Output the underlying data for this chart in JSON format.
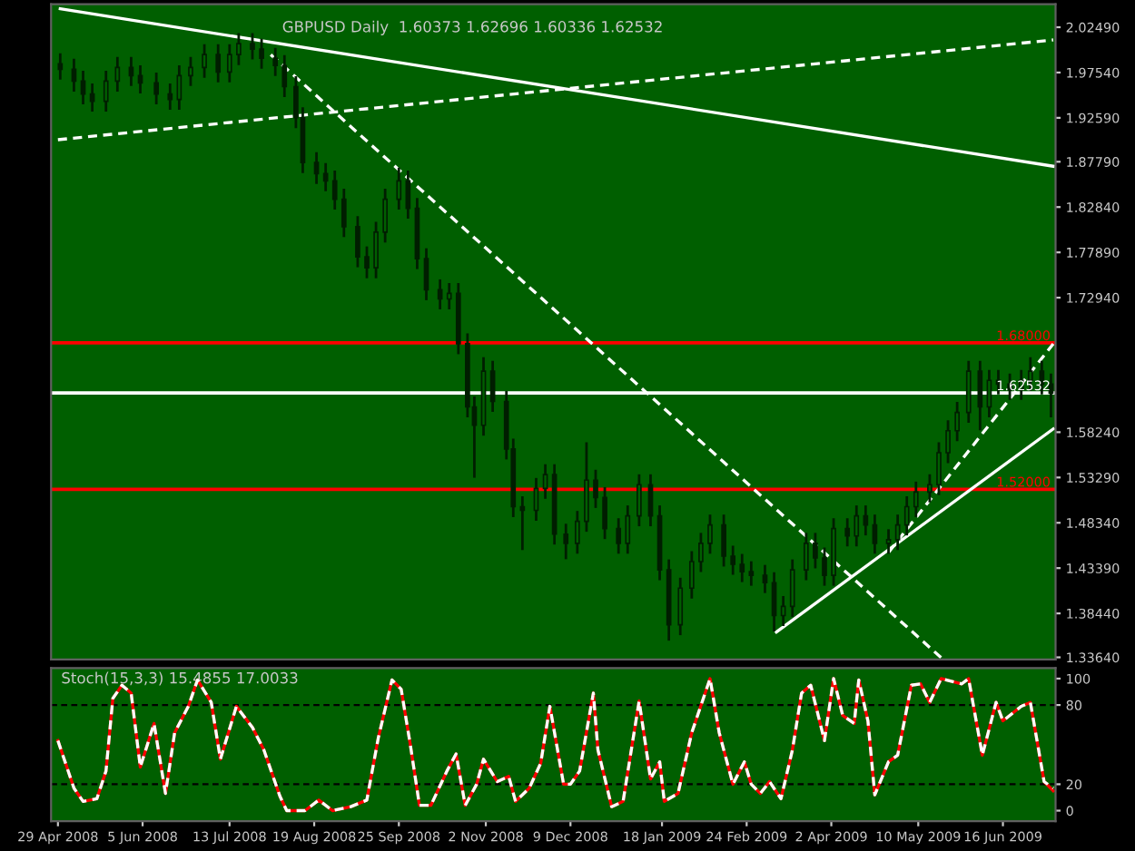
{
  "chart_data": [
    {
      "type": "candlestick",
      "title": "GBPUSD Daily  1.60373 1.62696 1.60336 1.62532",
      "color": "#001e00",
      "x": [
        "2008-04-30",
        "2008-05-06",
        "2008-05-10",
        "2008-05-14",
        "2008-05-20",
        "2008-05-25",
        "2008-05-31",
        "2008-06-04",
        "2008-06-11",
        "2008-06-17",
        "2008-06-21",
        "2008-06-26",
        "2008-07-02",
        "2008-07-08",
        "2008-07-13",
        "2008-07-17",
        "2008-07-23",
        "2008-07-27",
        "2008-08-02",
        "2008-08-06",
        "2008-08-11",
        "2008-08-14",
        "2008-08-20",
        "2008-08-24",
        "2008-08-28",
        "2008-09-01",
        "2008-09-07",
        "2008-09-11",
        "2008-09-15",
        "2008-09-19",
        "2008-09-25",
        "2008-09-29",
        "2008-10-03",
        "2008-10-07",
        "2008-10-13",
        "2008-10-17",
        "2008-10-21",
        "2008-10-25",
        "2008-10-28",
        "2008-11-01",
        "2008-11-05",
        "2008-11-11",
        "2008-11-14",
        "2008-11-18",
        "2008-11-24",
        "2008-11-28",
        "2008-12-02",
        "2008-12-07",
        "2008-12-12",
        "2008-12-16",
        "2008-12-20",
        "2008-12-24",
        "2008-12-30",
        "2009-01-03",
        "2009-01-08",
        "2009-01-13",
        "2009-01-17",
        "2009-01-21",
        "2009-01-26",
        "2009-01-31",
        "2009-02-04",
        "2009-02-08",
        "2009-02-14",
        "2009-02-18",
        "2009-02-22",
        "2009-02-26",
        "2009-03-04",
        "2009-03-08",
        "2009-03-12",
        "2009-03-16",
        "2009-03-22",
        "2009-03-26",
        "2009-03-30",
        "2009-04-03",
        "2009-04-09",
        "2009-04-13",
        "2009-04-17",
        "2009-04-21",
        "2009-04-27",
        "2009-05-01",
        "2009-05-05",
        "2009-05-09",
        "2009-05-15",
        "2009-05-19",
        "2009-05-23",
        "2009-05-27",
        "2009-06-01",
        "2009-06-06",
        "2009-06-10",
        "2009-06-14",
        "2009-06-19",
        "2009-06-24",
        "2009-06-28",
        "2009-07-03",
        "2009-07-07"
      ],
      "ohlc": [
        [
          1.985,
          1.995,
          1.969,
          1.979
        ],
        [
          1.979,
          1.989,
          1.956,
          1.966
        ],
        [
          1.966,
          1.976,
          1.942,
          1.952
        ],
        [
          1.952,
          1.962,
          1.934,
          1.944
        ],
        [
          1.944,
          1.976,
          1.934,
          1.966
        ],
        [
          1.966,
          1.991,
          1.956,
          1.981
        ],
        [
          1.981,
          1.991,
          1.962,
          1.972
        ],
        [
          1.972,
          1.982,
          1.954,
          1.964
        ],
        [
          1.964,
          1.974,
          1.942,
          1.952
        ],
        [
          1.952,
          1.962,
          1.936,
          1.946
        ],
        [
          1.946,
          1.982,
          1.936,
          1.972
        ],
        [
          1.972,
          1.991,
          1.962,
          1.981
        ],
        [
          1.981,
          2.005,
          1.971,
          1.995
        ],
        [
          1.995,
          2.005,
          1.966,
          1.976
        ],
        [
          1.976,
          2.005,
          1.966,
          1.995
        ],
        [
          1.995,
          2.017,
          1.985,
          2.007
        ],
        [
          2.007,
          2.017,
          1.991,
          2.001
        ],
        [
          2.001,
          2.011,
          1.981,
          1.991
        ],
        [
          1.991,
          2.001,
          1.973,
          1.983
        ],
        [
          1.983,
          1.993,
          1.95,
          1.96
        ],
        [
          1.96,
          1.97,
          1.916,
          1.926
        ],
        [
          1.926,
          1.936,
          1.867,
          1.877
        ],
        [
          1.877,
          1.887,
          1.855,
          1.865
        ],
        [
          1.865,
          1.875,
          1.847,
          1.857
        ],
        [
          1.857,
          1.867,
          1.827,
          1.837
        ],
        [
          1.837,
          1.847,
          1.797,
          1.807
        ],
        [
          1.807,
          1.817,
          1.764,
          1.774
        ],
        [
          1.774,
          1.784,
          1.752,
          1.762
        ],
        [
          1.762,
          1.811,
          1.752,
          1.801
        ],
        [
          1.801,
          1.847,
          1.791,
          1.837
        ],
        [
          1.837,
          1.87,
          1.827,
          1.857
        ],
        [
          1.857,
          1.867,
          1.817,
          1.827
        ],
        [
          1.827,
          1.837,
          1.762,
          1.772
        ],
        [
          1.772,
          1.782,
          1.728,
          1.738
        ],
        [
          1.738,
          1.748,
          1.718,
          1.728
        ],
        [
          1.728,
          1.744,
          1.718,
          1.734
        ],
        [
          1.734,
          1.744,
          1.669,
          1.679
        ],
        [
          1.679,
          1.689,
          1.6,
          1.61
        ],
        [
          1.61,
          1.62,
          1.534,
          1.59
        ],
        [
          1.59,
          1.663,
          1.58,
          1.649
        ],
        [
          1.649,
          1.659,
          1.606,
          1.616
        ],
        [
          1.616,
          1.626,
          1.554,
          1.564
        ],
        [
          1.564,
          1.574,
          1.491,
          1.501
        ],
        [
          1.501,
          1.511,
          1.455,
          1.497
        ],
        [
          1.497,
          1.531,
          1.487,
          1.521
        ],
        [
          1.521,
          1.546,
          1.511,
          1.536
        ],
        [
          1.536,
          1.546,
          1.461,
          1.471
        ],
        [
          1.471,
          1.481,
          1.445,
          1.461
        ],
        [
          1.461,
          1.495,
          1.451,
          1.485
        ],
        [
          1.485,
          1.57,
          1.475,
          1.53
        ],
        [
          1.53,
          1.54,
          1.501,
          1.511
        ],
        [
          1.511,
          1.521,
          1.467,
          1.477
        ],
        [
          1.477,
          1.487,
          1.451,
          1.461
        ],
        [
          1.461,
          1.501,
          1.451,
          1.491
        ],
        [
          1.491,
          1.535,
          1.481,
          1.525
        ],
        [
          1.525,
          1.535,
          1.481,
          1.491
        ],
        [
          1.491,
          1.501,
          1.422,
          1.432
        ],
        [
          1.432,
          1.442,
          1.356,
          1.372
        ],
        [
          1.372,
          1.422,
          1.362,
          1.412
        ],
        [
          1.412,
          1.451,
          1.402,
          1.441
        ],
        [
          1.441,
          1.471,
          1.431,
          1.461
        ],
        [
          1.461,
          1.491,
          1.451,
          1.481
        ],
        [
          1.481,
          1.491,
          1.437,
          1.447
        ],
        [
          1.447,
          1.457,
          1.428,
          1.438
        ],
        [
          1.438,
          1.448,
          1.42,
          1.43
        ],
        [
          1.43,
          1.44,
          1.416,
          1.426
        ],
        [
          1.426,
          1.436,
          1.408,
          1.418
        ],
        [
          1.418,
          1.428,
          1.366,
          1.382
        ],
        [
          1.382,
          1.402,
          1.372,
          1.392
        ],
        [
          1.392,
          1.442,
          1.382,
          1.432
        ],
        [
          1.432,
          1.471,
          1.422,
          1.461
        ],
        [
          1.461,
          1.471,
          1.435,
          1.445
        ],
        [
          1.445,
          1.455,
          1.416,
          1.426
        ],
        [
          1.426,
          1.487,
          1.416,
          1.477
        ],
        [
          1.477,
          1.487,
          1.459,
          1.469
        ],
        [
          1.469,
          1.501,
          1.459,
          1.491
        ],
        [
          1.491,
          1.501,
          1.471,
          1.481
        ],
        [
          1.481,
          1.491,
          1.451,
          1.461
        ],
        [
          1.461,
          1.475,
          1.451,
          1.465
        ],
        [
          1.465,
          1.491,
          1.455,
          1.481
        ],
        [
          1.481,
          1.511,
          1.471,
          1.501
        ],
        [
          1.501,
          1.527,
          1.491,
          1.517
        ],
        [
          1.517,
          1.535,
          1.507,
          1.525
        ],
        [
          1.525,
          1.57,
          1.515,
          1.56
        ],
        [
          1.56,
          1.594,
          1.55,
          1.584
        ],
        [
          1.584,
          1.614,
          1.574,
          1.604
        ],
        [
          1.604,
          1.659,
          1.594,
          1.649
        ],
        [
          1.649,
          1.659,
          1.586,
          1.61
        ],
        [
          1.61,
          1.649,
          1.6,
          1.639
        ],
        [
          1.639,
          1.649,
          1.625,
          1.635
        ],
        [
          1.635,
          1.645,
          1.619,
          1.629
        ],
        [
          1.629,
          1.649,
          1.619,
          1.639
        ],
        [
          1.639,
          1.663,
          1.629,
          1.649
        ],
        [
          1.649,
          1.659,
          1.625,
          1.635
        ],
        [
          1.635,
          1.645,
          1.6,
          1.625
        ]
      ],
      "series": [
        {
          "type": "line",
          "color": "#ffffff",
          "line_style": "solid",
          "x": [
            "2008-04-30",
            "2009-07-08"
          ],
          "values": [
            2.045,
            1.873
          ]
        },
        {
          "type": "line",
          "color": "#ffffff",
          "line_style": "dashed",
          "x": [
            "2008-04-29",
            "2009-07-08"
          ],
          "values": [
            1.902,
            2.011
          ]
        },
        {
          "type": "line",
          "color": "#ffffff",
          "line_style": "dashed",
          "x": [
            "2008-07-31",
            "2009-05-20"
          ],
          "values": [
            1.995,
            1.336
          ]
        },
        {
          "type": "line",
          "color": "#ffffff",
          "line_style": "solid",
          "x": [
            "2009-03-09",
            "2009-07-08"
          ],
          "values": [
            1.364,
            1.586
          ]
        },
        {
          "type": "line",
          "color": "#ffffff",
          "line_style": "dashed",
          "x": [
            "2009-04-27",
            "2009-07-08"
          ],
          "values": [
            1.451,
            1.679
          ]
        }
      ],
      "ref_lines": [
        {
          "axis": "y",
          "value": 1.68,
          "label": "1.68000",
          "color": "#ff0000"
        },
        {
          "axis": "y",
          "value": 1.62532,
          "label": "1.62532",
          "color": "#ffffff"
        },
        {
          "axis": "y",
          "value": 1.52,
          "label": "1.52000",
          "color": "#ff0000"
        }
      ],
      "xlim": [
        "2008-04-26",
        "2009-07-09"
      ],
      "ylim": [
        1.334,
        2.05
      ],
      "yticks": [
        {
          "value": 2.0249,
          "label": "2.02490"
        },
        {
          "value": 1.9754,
          "label": "1.97540"
        },
        {
          "value": 1.9259,
          "label": "1.92590"
        },
        {
          "value": 1.8779,
          "label": "1.87790"
        },
        {
          "value": 1.8284,
          "label": "1.82840"
        },
        {
          "value": 1.7789,
          "label": "1.77890"
        },
        {
          "value": 1.7294,
          "label": "1.72940"
        },
        {
          "value": 1.5824,
          "label": "1.58240"
        },
        {
          "value": 1.5329,
          "label": "1.53290"
        },
        {
          "value": 1.4834,
          "label": "1.48340"
        },
        {
          "value": 1.4339,
          "label": "1.43390"
        },
        {
          "value": 1.3844,
          "label": "1.38440"
        },
        {
          "value": 1.3364,
          "label": "1.33640"
        }
      ],
      "tick_labels": "y"
    },
    {
      "type": "line",
      "title": "Stoch(15,3,3) 15.4855 17.0033",
      "series": [
        {
          "color": "#ff0000",
          "line_style": "solid",
          "x": [
            "2008-04-29",
            "2008-05-06",
            "2008-05-10",
            "2008-05-16",
            "2008-05-20",
            "2008-05-23",
            "2008-05-27",
            "2008-05-31",
            "2008-06-04",
            "2008-06-10",
            "2008-06-15",
            "2008-06-19",
            "2008-06-25",
            "2008-06-29",
            "2008-07-05",
            "2008-07-09",
            "2008-07-16",
            "2008-07-23",
            "2008-07-28",
            "2008-08-04",
            "2008-08-07",
            "2008-08-15",
            "2008-08-21",
            "2008-08-27",
            "2008-09-04",
            "2008-09-11",
            "2008-09-16",
            "2008-09-22",
            "2008-09-26",
            "2008-09-30",
            "2008-10-04",
            "2008-10-09",
            "2008-10-16",
            "2008-10-20",
            "2008-10-24",
            "2008-10-29",
            "2008-11-01",
            "2008-11-07",
            "2008-11-12",
            "2008-11-15",
            "2008-11-21",
            "2008-11-26",
            "2008-11-30",
            "2008-12-06",
            "2008-12-09",
            "2008-12-13",
            "2008-12-19",
            "2008-12-21",
            "2008-12-27",
            "2009-01-01",
            "2009-01-08",
            "2009-01-13",
            "2009-01-17",
            "2009-01-19",
            "2009-01-25",
            "2009-01-31",
            "2009-02-08",
            "2009-02-12",
            "2009-02-18",
            "2009-02-23",
            "2009-02-26",
            "2009-03-02",
            "2009-03-06",
            "2009-03-11",
            "2009-03-16",
            "2009-03-20",
            "2009-03-24",
            "2009-03-30",
            "2009-04-03",
            "2009-04-07",
            "2009-04-12",
            "2009-04-14",
            "2009-04-18",
            "2009-04-21",
            "2009-04-27",
            "2009-05-01",
            "2009-05-07",
            "2009-05-11",
            "2009-05-15",
            "2009-05-20",
            "2009-05-29",
            "2009-06-01",
            "2009-06-07",
            "2009-06-13",
            "2009-06-16",
            "2009-06-24",
            "2009-06-28",
            "2009-07-04",
            "2009-07-08"
          ],
          "values": [
            53,
            17,
            7,
            9,
            30,
            85,
            95,
            89,
            33,
            66,
            13,
            59,
            79,
            99,
            82,
            39,
            79,
            63,
            46,
            11,
            0,
            0,
            8,
            0,
            3,
            8,
            55,
            99,
            92,
            50,
            4,
            4,
            30,
            43,
            4,
            20,
            39,
            22,
            26,
            7,
            17,
            36,
            79,
            20,
            20,
            30,
            89,
            46,
            3,
            7,
            83,
            24,
            37,
            7,
            13,
            59,
            100,
            59,
            20,
            37,
            20,
            13,
            22,
            9,
            46,
            89,
            95,
            53,
            100,
            72,
            66,
            99,
            68,
            12,
            37,
            42,
            95,
            96,
            82,
            100,
            96,
            100,
            42,
            82,
            68,
            79,
            82,
            22,
            15
          ]
        },
        {
          "color": "#ffffff",
          "line_style": "dashed",
          "x": [
            "2008-04-29",
            "2008-05-06",
            "2008-05-10",
            "2008-05-16",
            "2008-05-20",
            "2008-05-23",
            "2008-05-27",
            "2008-05-31",
            "2008-06-04",
            "2008-06-10",
            "2008-06-15",
            "2008-06-19",
            "2008-06-25",
            "2008-06-29",
            "2008-07-05",
            "2008-07-09",
            "2008-07-16",
            "2008-07-23",
            "2008-07-28",
            "2008-08-04",
            "2008-08-07",
            "2008-08-15",
            "2008-08-21",
            "2008-08-27",
            "2008-09-04",
            "2008-09-11",
            "2008-09-16",
            "2008-09-22",
            "2008-09-26",
            "2008-09-30",
            "2008-10-04",
            "2008-10-09",
            "2008-10-16",
            "2008-10-20",
            "2008-10-24",
            "2008-10-29",
            "2008-11-01",
            "2008-11-07",
            "2008-11-12",
            "2008-11-15",
            "2008-11-21",
            "2008-11-26",
            "2008-11-30",
            "2008-12-06",
            "2008-12-09",
            "2008-12-13",
            "2008-12-19",
            "2008-12-21",
            "2008-12-27",
            "2009-01-01",
            "2009-01-08",
            "2009-01-13",
            "2009-01-17",
            "2009-01-19",
            "2009-01-25",
            "2009-01-31",
            "2009-02-08",
            "2009-02-12",
            "2009-02-18",
            "2009-02-23",
            "2009-02-26",
            "2009-03-02",
            "2009-03-06",
            "2009-03-11",
            "2009-03-16",
            "2009-03-20",
            "2009-03-24",
            "2009-03-30",
            "2009-04-03",
            "2009-04-07",
            "2009-04-12",
            "2009-04-14",
            "2009-04-18",
            "2009-04-21",
            "2009-04-27",
            "2009-05-01",
            "2009-05-07",
            "2009-05-11",
            "2009-05-15",
            "2009-05-20",
            "2009-05-29",
            "2009-06-01",
            "2009-06-07",
            "2009-06-13",
            "2009-06-16",
            "2009-06-24",
            "2009-06-28",
            "2009-07-04",
            "2009-07-08"
          ],
          "values": [
            53,
            17,
            7,
            9,
            30,
            85,
            95,
            89,
            33,
            66,
            13,
            59,
            79,
            99,
            82,
            39,
            79,
            63,
            46,
            11,
            0,
            0,
            8,
            0,
            3,
            8,
            55,
            99,
            92,
            50,
            4,
            4,
            30,
            43,
            4,
            20,
            39,
            22,
            26,
            7,
            17,
            36,
            79,
            20,
            20,
            30,
            89,
            46,
            3,
            7,
            83,
            24,
            37,
            7,
            13,
            59,
            100,
            59,
            20,
            37,
            20,
            13,
            22,
            9,
            46,
            89,
            95,
            53,
            100,
            72,
            66,
            99,
            68,
            12,
            37,
            42,
            95,
            96,
            82,
            100,
            96,
            100,
            42,
            82,
            68,
            79,
            82,
            22,
            17
          ]
        }
      ],
      "ref_lines": [
        {
          "axis": "y",
          "value": 80,
          "color": "#000000",
          "line_style": "dashed"
        },
        {
          "axis": "y",
          "value": 20,
          "color": "#000000",
          "line_style": "dashed"
        }
      ],
      "xlim": [
        "2008-04-26",
        "2009-07-09"
      ],
      "ylim": [
        -8,
        108
      ],
      "yticks": [
        0,
        20,
        80,
        100
      ],
      "xticks": [
        {
          "value": "2008-04-29",
          "label": "29 Apr 2008"
        },
        {
          "value": "2008-06-05",
          "label": "5 Jun 2008"
        },
        {
          "value": "2008-07-13",
          "label": "13 Jul 2008"
        },
        {
          "value": "2008-08-19",
          "label": "19 Aug 2008"
        },
        {
          "value": "2008-09-25",
          "label": "25 Sep 2008"
        },
        {
          "value": "2008-11-02",
          "label": "2 Nov 2008"
        },
        {
          "value": "2008-12-09",
          "label": "9 Dec 2008"
        },
        {
          "value": "2009-01-18",
          "label": "18 Jan 2009"
        },
        {
          "value": "2009-02-24",
          "label": "24 Feb 2009"
        },
        {
          "value": "2009-04-02",
          "label": "2 Apr 2009"
        },
        {
          "value": "2009-05-10",
          "label": "10 May 2009"
        },
        {
          "value": "2009-06-16",
          "label": "16 Jun 2009"
        }
      ]
    }
  ]
}
